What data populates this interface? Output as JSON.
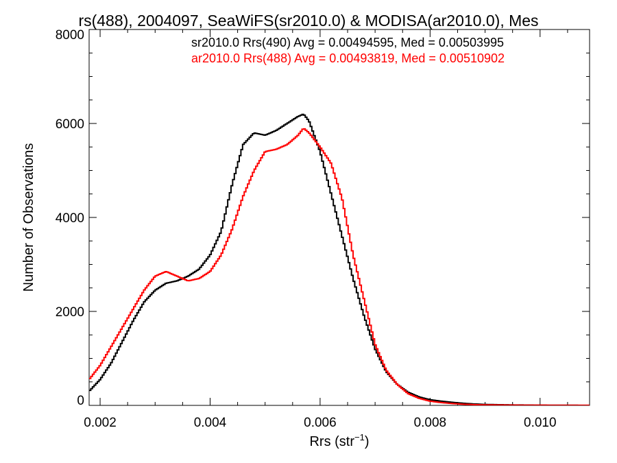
{
  "chart_data": {
    "type": "line",
    "title": "rs(488), 2004097, SeaWiFS(sr2010.0) & MODISA(ar2010.0), Mes",
    "xlabel": "Rrs (str",
    "xlabel_sup": "−1",
    "xlabel_end": ")",
    "ylabel": "Number of Observations",
    "xlim": [
      0.0018,
      0.0109
    ],
    "ylim": [
      0,
      8000
    ],
    "x_ticks": [
      0.002,
      0.004,
      0.006,
      0.008,
      0.01
    ],
    "x_tick_labels": [
      "0.002",
      "0.004",
      "0.006",
      "0.008",
      "0.010"
    ],
    "y_ticks": [
      0,
      2000,
      4000,
      6000,
      8000
    ],
    "y_tick_labels": [
      "0",
      "2000",
      "4000",
      "6000",
      "8000"
    ],
    "x_minor_step": 0.0005,
    "y_minor_step": 500,
    "grid": false,
    "legend_position": "top-right",
    "series": [
      {
        "name": "sr2010.0 Rrs(490) Avg = 0.00494595, Med = 0.00503995",
        "color": "#000000",
        "points": [
          [
            0.0018,
            300
          ],
          [
            0.002,
            550
          ],
          [
            0.0022,
            900
          ],
          [
            0.0024,
            1350
          ],
          [
            0.0026,
            1800
          ],
          [
            0.0028,
            2200
          ],
          [
            0.003,
            2450
          ],
          [
            0.0032,
            2600
          ],
          [
            0.0034,
            2650
          ],
          [
            0.0036,
            2750
          ],
          [
            0.0038,
            2900
          ],
          [
            0.004,
            3200
          ],
          [
            0.0042,
            3700
          ],
          [
            0.0044,
            4700
          ],
          [
            0.0046,
            5550
          ],
          [
            0.0048,
            5800
          ],
          [
            0.005,
            5750
          ],
          [
            0.0052,
            5850
          ],
          [
            0.0054,
            6000
          ],
          [
            0.0056,
            6150
          ],
          [
            0.0057,
            6200
          ],
          [
            0.0058,
            6050
          ],
          [
            0.006,
            5400
          ],
          [
            0.0062,
            4500
          ],
          [
            0.0064,
            3600
          ],
          [
            0.0066,
            2700
          ],
          [
            0.0068,
            1900
          ],
          [
            0.007,
            1200
          ],
          [
            0.0072,
            720
          ],
          [
            0.0074,
            450
          ],
          [
            0.0076,
            280
          ],
          [
            0.0078,
            180
          ],
          [
            0.008,
            120
          ],
          [
            0.0082,
            90
          ],
          [
            0.0084,
            65
          ],
          [
            0.0086,
            45
          ],
          [
            0.0088,
            30
          ],
          [
            0.009,
            20
          ],
          [
            0.0095,
            10
          ],
          [
            0.01,
            5
          ],
          [
            0.0109,
            2
          ]
        ]
      },
      {
        "name": "ar2010.0 Rrs(488) Avg = 0.00493819, Med = 0.00510902",
        "color": "#ff0000",
        "points": [
          [
            0.0018,
            550
          ],
          [
            0.002,
            850
          ],
          [
            0.0022,
            1250
          ],
          [
            0.0024,
            1650
          ],
          [
            0.0026,
            2050
          ],
          [
            0.0028,
            2450
          ],
          [
            0.003,
            2750
          ],
          [
            0.0032,
            2850
          ],
          [
            0.0034,
            2750
          ],
          [
            0.0036,
            2650
          ],
          [
            0.0038,
            2700
          ],
          [
            0.004,
            2850
          ],
          [
            0.0042,
            3200
          ],
          [
            0.0044,
            3750
          ],
          [
            0.0046,
            4450
          ],
          [
            0.0048,
            5000
          ],
          [
            0.005,
            5400
          ],
          [
            0.0052,
            5450
          ],
          [
            0.0054,
            5550
          ],
          [
            0.0056,
            5750
          ],
          [
            0.0057,
            5900
          ],
          [
            0.0058,
            5800
          ],
          [
            0.006,
            5500
          ],
          [
            0.0062,
            5150
          ],
          [
            0.0064,
            4400
          ],
          [
            0.0066,
            3200
          ],
          [
            0.0068,
            2250
          ],
          [
            0.007,
            1300
          ],
          [
            0.0072,
            750
          ],
          [
            0.0074,
            450
          ],
          [
            0.0076,
            250
          ],
          [
            0.0078,
            150
          ],
          [
            0.008,
            90
          ],
          [
            0.0082,
            60
          ],
          [
            0.0084,
            40
          ],
          [
            0.0086,
            25
          ],
          [
            0.0088,
            15
          ],
          [
            0.009,
            10
          ],
          [
            0.0095,
            5
          ],
          [
            0.01,
            3
          ],
          [
            0.0109,
            1
          ]
        ]
      }
    ]
  }
}
